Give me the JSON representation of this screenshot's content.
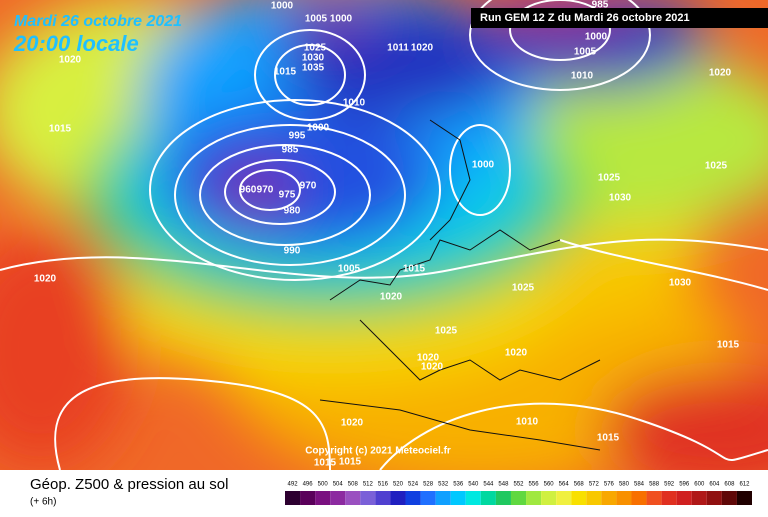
{
  "header": {
    "date": "Mardi 26 octobre 2021",
    "time": "20:00 locale",
    "run": "Run GEM 12 Z du Mardi 26 octobre 2021"
  },
  "copyright": "Copyright (c) 2021 Meteociel.fr",
  "footer": {
    "title": "Géop. Z500 & pression au sol",
    "lead": "(+ 6h)"
  },
  "isobar_labels": [
    "1000",
    "1005",
    "1000",
    "1020",
    "1025",
    "1030",
    "1035",
    "1015",
    "1011",
    "1020",
    "985",
    "1000",
    "1005",
    "1010",
    "1020",
    "1010",
    "1000",
    "995",
    "985",
    "960",
    "970",
    "975",
    "970",
    "980",
    "990",
    "1000",
    "1025",
    "1030",
    "1025",
    "1005",
    "1015",
    "1025",
    "1030",
    "1020",
    "1025",
    "1020",
    "1020",
    "1020",
    "1015",
    "1020",
    "1010",
    "1020",
    "1015",
    "1015",
    "1015",
    "1015"
  ],
  "colorbar": {
    "labels": [
      492,
      496,
      500,
      504,
      508,
      512,
      516,
      520,
      524,
      528,
      532,
      536,
      540,
      544,
      548,
      552,
      556,
      560,
      564,
      568,
      572,
      576,
      580,
      584,
      588,
      592,
      596,
      600,
      604,
      608,
      612
    ],
    "colors": [
      "#2d0030",
      "#5a005a",
      "#7a1080",
      "#8c2aa0",
      "#9a50c0",
      "#7a60d8",
      "#5040d0",
      "#2020c0",
      "#1040e0",
      "#2070ff",
      "#10a0ff",
      "#00c8ff",
      "#00e8e0",
      "#00d8a0",
      "#20c860",
      "#60d840",
      "#a0e840",
      "#d0f040",
      "#f0f040",
      "#f8e000",
      "#f8c800",
      "#f8a800",
      "#f89000",
      "#f87000",
      "#f05020",
      "#e03020",
      "#d02020",
      "#b01818",
      "#901010",
      "#600808",
      "#200000"
    ]
  }
}
